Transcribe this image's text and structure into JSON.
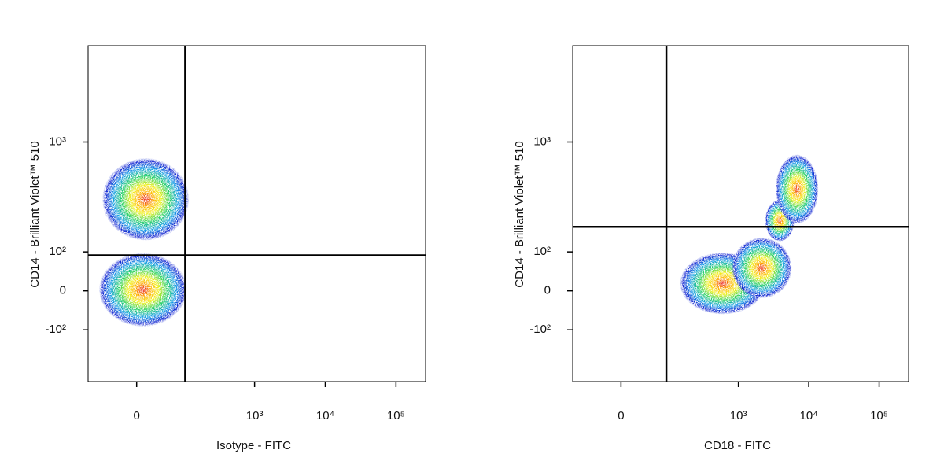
{
  "chart_data": [
    {
      "type": "density",
      "xlabel": "Isotype - FITC",
      "ylabel": "CD14 - Brilliant Violet™ 510",
      "xscale": "biexponential",
      "yscale": "biexponential",
      "xlim": [
        -100,
        262144
      ],
      "ylim": [
        -330,
        6000
      ],
      "xticks": [
        0,
        {
          "value": 1000,
          "label": "10³"
        },
        {
          "value": 10000,
          "label": "10⁴"
        },
        {
          "value": 100000,
          "label": "10⁵"
        }
      ],
      "yticks": [
        {
          "value": -100,
          "label": "-10²"
        },
        0,
        {
          "value": 100,
          "label": "10²"
        },
        {
          "value": 1000,
          "label": "10³"
        }
      ],
      "gates": {
        "x": 100,
        "y": 90
      },
      "populations": [
        {
          "x": [
            -50,
            100
          ],
          "y": [
            150,
            690
          ]
        },
        {
          "x": [
            -57,
            92
          ],
          "y": [
            -81,
            87
          ]
        }
      ]
    },
    {
      "type": "density",
      "xlabel": "CD18 - FITC",
      "ylabel": "CD14 - Brilliant Violet™ 510",
      "xscale": "biexponential",
      "yscale": "biexponential",
      "xlim": [
        -100,
        262144
      ],
      "ylim": [
        -330,
        6000
      ],
      "xticks": [
        0,
        {
          "value": 1000,
          "label": "10³"
        },
        {
          "value": 10000,
          "label": "10⁴"
        },
        {
          "value": 100000,
          "label": "10⁵"
        }
      ],
      "yticks": [
        {
          "value": -100,
          "label": "-10²"
        },
        0,
        {
          "value": 100,
          "label": "10²"
        },
        {
          "value": 1000,
          "label": "10³"
        }
      ],
      "gates": {
        "x": 90,
        "y": 189
      },
      "populations": [
        {
          "x": [
            164,
            2150
          ],
          "y": [
            -50,
            90
          ]
        },
        {
          "x": [
            877,
            5250
          ],
          "y": [
            -11,
            137
          ]
        },
        {
          "x": [
            2500,
            6000
          ],
          "y": [
            140,
            320
          ]
        },
        {
          "x": [
            3590,
            12900
          ],
          "y": [
            216,
            746
          ]
        }
      ]
    }
  ]
}
